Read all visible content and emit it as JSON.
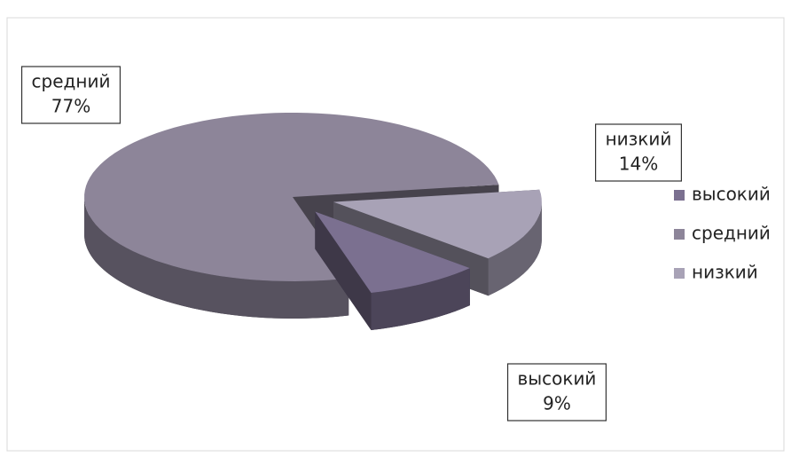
{
  "chart_data": {
    "type": "pie3d",
    "categories": [
      "высокий",
      "средний",
      "низкий"
    ],
    "values": [
      9,
      77,
      14
    ],
    "value_labels": [
      "9%",
      "77%",
      "14%"
    ],
    "colors": [
      "#7b7090",
      "#8d8599",
      "#a8a2b6"
    ],
    "legend": "right"
  }
}
